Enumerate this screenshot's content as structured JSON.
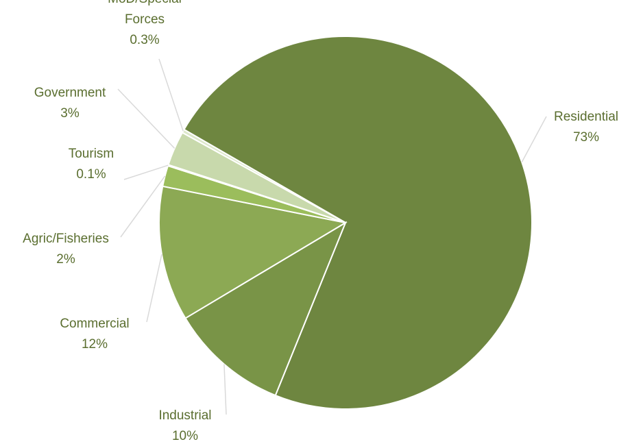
{
  "chart_data": {
    "type": "pie",
    "title": "",
    "slices": [
      {
        "name": "Residential",
        "value_label": "73%",
        "value": 72.8,
        "color": "#6e8640"
      },
      {
        "name": "Industrial",
        "value_label": "10%",
        "value": 10.3,
        "color": "#799447"
      },
      {
        "name": "Commercial",
        "value_label": "12%",
        "value": 11.7,
        "color": "#8ca954"
      },
      {
        "name": "Agric/Fisheries",
        "value_label": "2%",
        "value": 1.8,
        "color": "#9bbd5c"
      },
      {
        "name": "Tourism",
        "value_label": "0.1%",
        "value": 0.1,
        "color": "#b3ce8a"
      },
      {
        "name": "Government",
        "value_label": "3%",
        "value": 3.0,
        "color": "#c8d9ac"
      },
      {
        "name": "MoD/Special Forces",
        "value_label": "0.3%",
        "value": 0.3,
        "color": "#dde8cb"
      }
    ],
    "legend": "none",
    "data_labels": "outside with leader lines"
  }
}
